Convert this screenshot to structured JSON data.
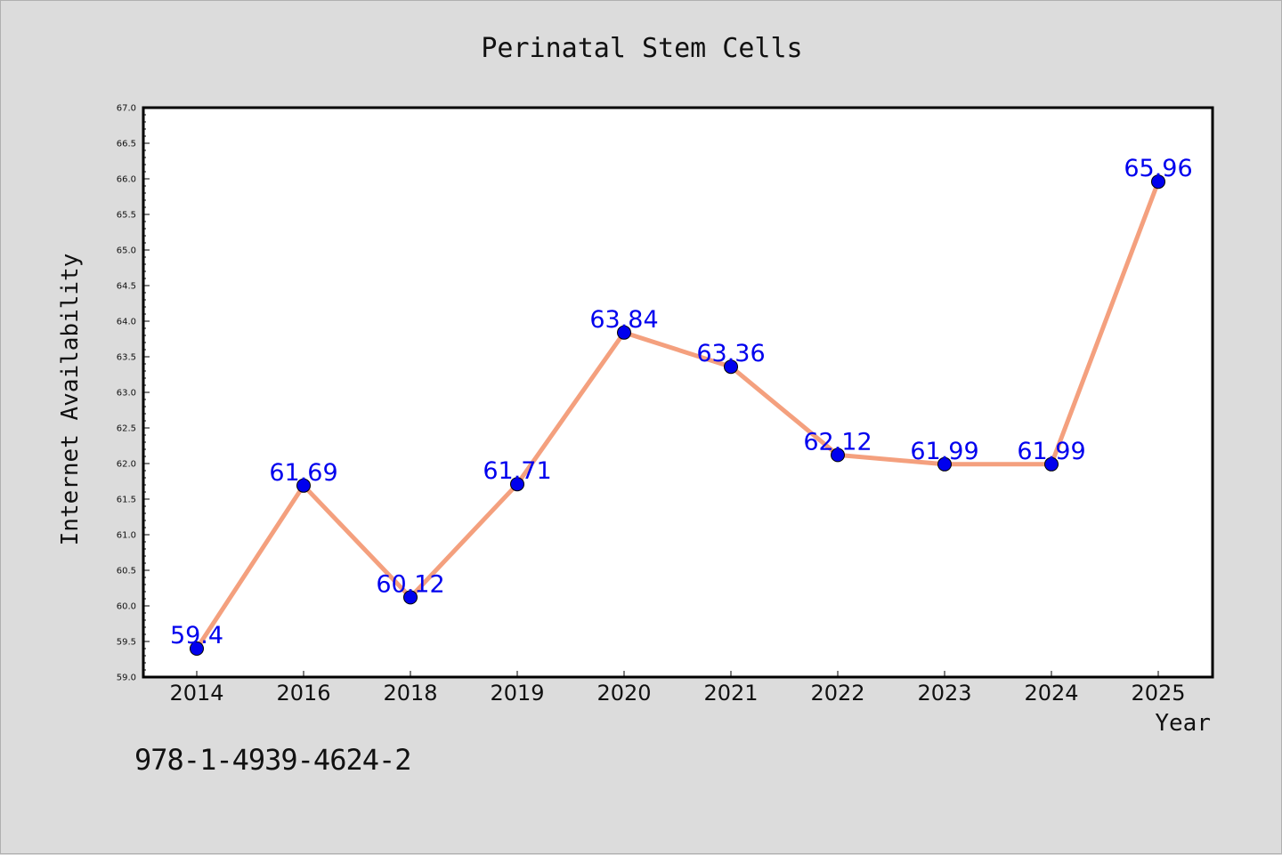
{
  "chart_data": {
    "type": "line",
    "title": "Perinatal Stem Cells",
    "xlabel": "Year",
    "ylabel": "Internet Availability",
    "categories": [
      "2014",
      "2016",
      "2018",
      "2019",
      "2020",
      "2021",
      "2022",
      "2023",
      "2024",
      "2025"
    ],
    "series": [
      {
        "values": [
          59.4,
          61.69,
          60.12,
          61.71,
          63.84,
          63.36,
          62.12,
          61.99,
          61.99,
          65.96
        ],
        "labels": [
          "59.4",
          "61.69",
          "60.12",
          "61.71",
          "63.84",
          "63.36",
          "62.12",
          "61.99",
          "61.99",
          "65.96"
        ],
        "line_color": "#f4a07e",
        "marker_color": "#0000ee"
      }
    ],
    "ylim": [
      59.0,
      67.0
    ],
    "yticks": [
      "59.0",
      "59.5",
      "60.0",
      "60.5",
      "61.0",
      "61.5",
      "62.0",
      "62.5",
      "63.0",
      "63.5",
      "64.0",
      "64.5",
      "65.0",
      "65.5",
      "66.0",
      "66.5",
      "67.0"
    ],
    "grid": false,
    "label_color": "#0000ee",
    "background": "#dcdcdc",
    "plot_background": "#ffffff"
  },
  "footer": {
    "isbn": "978-1-4939-4624-2"
  }
}
